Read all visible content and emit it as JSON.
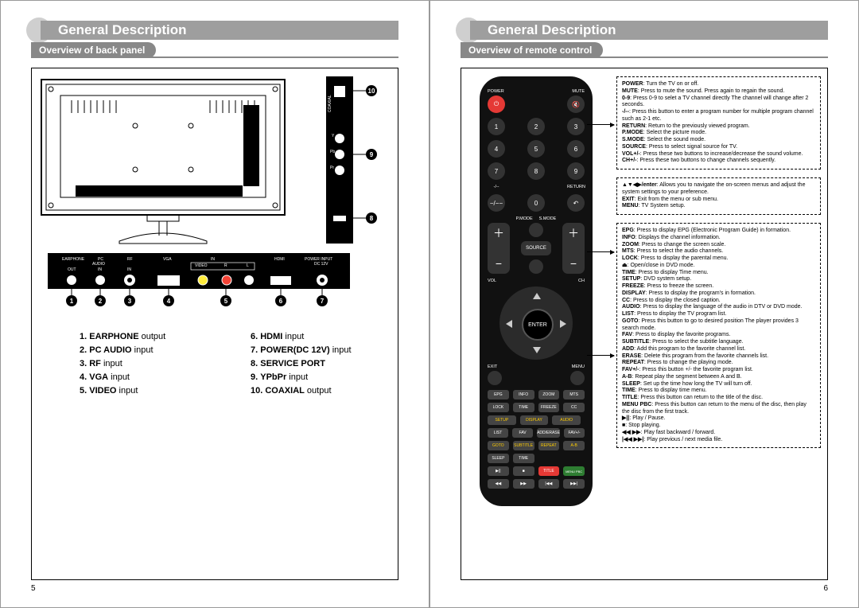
{
  "left": {
    "h1": "General Description",
    "h2": "Overview of back panel",
    "pagenum": "5",
    "ports": [
      {
        "n": "1.",
        "label": "EARPHONE",
        "suffix": " output"
      },
      {
        "n": "2.",
        "label": "PC AUDIO",
        "suffix": " input"
      },
      {
        "n": "3.",
        "label": "RF",
        "suffix": " input"
      },
      {
        "n": "4.",
        "label": "VGA",
        "suffix": " input"
      },
      {
        "n": "5.",
        "label": "VIDEO",
        "suffix": " input"
      },
      {
        "n": "6.",
        "label": "HDMI",
        "suffix": " input"
      },
      {
        "n": "7.",
        "label": "POWER(DC 12V)",
        "suffix": " input"
      },
      {
        "n": "8.",
        "label": "SERVICE PORT",
        "suffix": ""
      },
      {
        "n": "9.",
        "label": "YPbPr",
        "suffix": " input"
      },
      {
        "n": "10.",
        "label": "COAXIAL",
        "suffix": " output"
      }
    ],
    "bottom_labels": [
      "EARPHONE",
      "PC AUDIO",
      "RF",
      "VGA",
      "VIDEO",
      "R",
      "L",
      "HDMI",
      "POWER INPUT DC 12V"
    ],
    "bottom_sub": [
      "OUT",
      "IN",
      "IN",
      "",
      "IN",
      "",
      "",
      "",
      ""
    ],
    "side_labels": [
      "COAXIAL OUT",
      "Y",
      "Pb",
      "Pr",
      "SERVICE PORT"
    ],
    "side_callouts": [
      "10",
      "9",
      "8"
    ],
    "bottom_callouts": [
      "1",
      "2",
      "3",
      "4",
      "5",
      "6",
      "7"
    ]
  },
  "right": {
    "h1": "General Description",
    "h2": "Overview of remote control",
    "pagenum": "6",
    "logo": "RCA",
    "remote_labels": {
      "power": "POWER",
      "mute": "MUTE",
      "ret": "RETURN",
      "pm": "P.MODE",
      "sm": "S.MODE",
      "vol": "VOL",
      "ch": "CH",
      "src": "SOURCE",
      "exit": "EXIT",
      "menu": "MENU",
      "enter": "ENTER",
      "row1": [
        "EPG",
        "INFO",
        "ZOOM",
        "MTS"
      ],
      "row2": [
        "LOCK",
        "TIME",
        "FREEZE",
        "CC"
      ],
      "row3": [
        "SETUP",
        "DISPLAY",
        "AUDIO"
      ],
      "row4": [
        "LIST",
        "FAV",
        "ADD/ERASE",
        "FAV+/-"
      ],
      "row5": [
        "GOTO",
        "SUBTITLE",
        "REPEAT",
        "A-B"
      ],
      "row6": [
        "SLEEP",
        "TIME"
      ],
      "row7": [
        "TITLE",
        "MENU PBC"
      ]
    },
    "blocks": [
      [
        [
          "POWER",
          ": Turn the TV on or off."
        ],
        [
          "MUTE",
          ": Press to mute the sound. Press again to regain the sound."
        ],
        [
          "0-9",
          ": Press 0-9 to selet a TV channel directly The channel will change after 2 seconds."
        ],
        [
          "-/--",
          ": Press this button to enter a program number for multiple program channel such as 2-1 etc."
        ],
        [
          "RETURN",
          ": Return to the previously viewed program."
        ],
        [
          "P.MODE",
          ": Select the picture mode."
        ],
        [
          "S.MODE",
          ": Select the sound mode."
        ],
        [
          "SOURCE",
          ": Press to select signal source for TV."
        ],
        [
          "VOL+/-",
          ": Press these two buttons to increase/decrease the sound volume."
        ],
        [
          "CH+/-",
          ": Press these two buttons to change channels sequently."
        ]
      ],
      [
        [
          "▲▼◀▶/enter",
          ": Allows you to navigate the on-screen menus and adjust the system settings to your preference."
        ],
        [
          "EXIT",
          ": Exit from the menu or sub menu."
        ],
        [
          "MENU",
          ": TV System setup."
        ]
      ],
      [
        [
          "EPG",
          ": Press to display EPG (Electronic Program Guide) in formation."
        ],
        [
          "INFO",
          ": Displays the channel information."
        ],
        [
          "ZOOM",
          ": Press to change the screen scale."
        ],
        [
          "MTS",
          ": Press to select the audio channels."
        ],
        [
          "LOCK",
          ": Press to display the parental menu."
        ],
        [
          "⏏",
          ": Open/close in DVD mode."
        ],
        [
          "TIME",
          ": Press to display Time menu."
        ],
        [
          "SETUP",
          ": DVD system setup."
        ],
        [
          "FREEZE",
          ": Press to freeze the screen."
        ],
        [
          "DISPLAY",
          ": Press to display the program's in formation."
        ],
        [
          "CC",
          ": Press to display the closed caption."
        ],
        [
          "AUDIO",
          ": Press to display the language of the audio in DTV or DVD mode."
        ],
        [
          "LIST",
          ": Press to display the TV program list."
        ],
        [
          "GOTO",
          ": Press this button to go to desired position The player provides 3 search mode."
        ],
        [
          "FAV",
          ": Press to display the favorite programs."
        ],
        [
          "SUBTITLE",
          ": Press to select the subtitle language."
        ],
        [
          "ADD",
          ": Add this program to the favorite channel list."
        ],
        [
          "ERASE",
          ": Delete this program from the favorite channels list."
        ],
        [
          "REPEAT",
          ": Press to change the playing mode."
        ],
        [
          "FAV+/-",
          ": Press this button +/- the favorite program list."
        ],
        [
          "A-B",
          ": Repeat play the segment between A and B."
        ],
        [
          "SLEEP",
          ": Set up the time how long the TV will turn off."
        ],
        [
          "TIME",
          ": Press to display time menu."
        ],
        [
          "TITLE",
          ": Press this button can return to the title of the disc."
        ],
        [
          "MENU PBC",
          ": Press this button can return to the menu of the disc, then play the disc from the first track."
        ],
        [
          "▶||",
          ": Play / Pause."
        ],
        [
          "■",
          ": Stop playing."
        ],
        [
          "◀◀ ▶▶",
          ": Play fast backward / forward."
        ],
        [
          "|◀◀ ▶▶|",
          ": Play previous / next media file."
        ]
      ]
    ]
  },
  "colors": {
    "band_grey": "#9e9e9e",
    "band_grey2": "#888888",
    "circle_grey": "#cfcfcf",
    "remote_black": "#111111",
    "btn_dark": "#333333",
    "btn_red": "#e53935",
    "btn_yellow_text": "#ffcc00"
  },
  "typography": {
    "h1_size": 17,
    "h2_size": 12,
    "list_size": 11,
    "desc_size": 7,
    "remote_font": 6
  }
}
